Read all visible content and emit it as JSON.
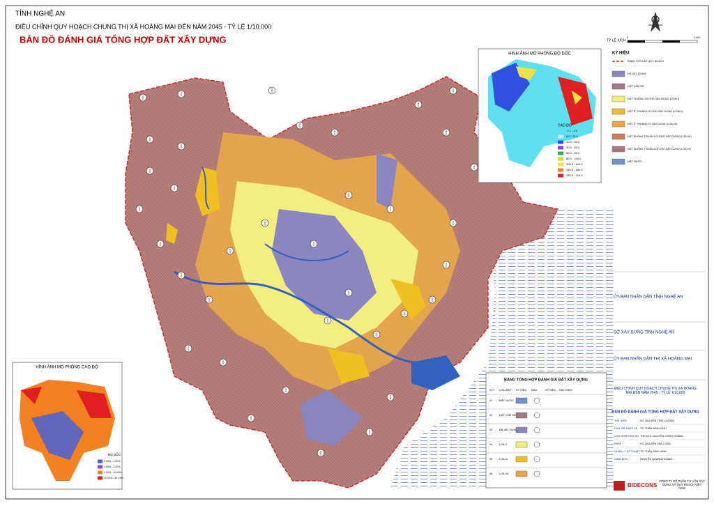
{
  "header": {
    "province": "TỈNH NGHỆ AN",
    "project": "ĐIỀU CHỈNH QUY HOẠCH CHUNG THỊ XÃ HOÀNG MAI ĐẾN NĂM 2045 - TỶ LỆ 1/10.000",
    "title": "BẢN ĐỒ ĐÁNH GIÁ TỔNG HỢP ĐẤT XÂY DỰNG",
    "scale_label": "TỶ LỆ XÍCH",
    "scale_start": "0",
    "scale_end": "1000"
  },
  "slope_inset": {
    "title": "HÌNH ẢNH MÔ PHỎNG ĐỘ DỐC",
    "legend_title": "CAO ĐỘ",
    "legend": [
      {
        "label": "-7.7 - 0.0",
        "color": "#5fe0f0"
      },
      {
        "label": "0.0 - 10.0",
        "color": "#b8f0f8"
      },
      {
        "label": "10.0 - 30.0",
        "color": "#3050e0"
      },
      {
        "label": "30.0 - 50.0",
        "color": "#9040d0"
      },
      {
        "label": "50.0 - 80.0",
        "color": "#30b040"
      },
      {
        "label": "80.0 - 100.0",
        "color": "#c8e040"
      },
      {
        "label": "100.0 - 140.0",
        "color": "#f0e040"
      },
      {
        "label": "140.0 - 180.0",
        "color": "#f08030"
      },
      {
        "label": "180.0 - 419.0",
        "color": "#e02020"
      }
    ]
  },
  "elevation_inset": {
    "title": "HÌNH ẢNH MÔ PHỎNG CAO ĐỘ",
    "legend_title": "ĐỘ DỐC",
    "legend": [
      {
        "label": "0.00% - 1.00%",
        "color": "#4060e0"
      },
      {
        "label": "1.00% - 2.00%",
        "color": "#a040c0"
      },
      {
        "label": "2.00% - 10.00%",
        "color": "#f08020"
      },
      {
        "label": "10.00% - 32.14%",
        "color": "#e02020"
      }
    ]
  },
  "legend": {
    "title": "KÝ HIỆU",
    "items": [
      {
        "label": "RANH GIỚI LẬP QUY HOẠCH",
        "color": "#c03030"
      },
      {
        "label": "ĐÃ XÂY DỰNG",
        "color": "#8a86c0"
      },
      {
        "label": "ĐẤT CẤM XD",
        "color": "#a07a80"
      },
      {
        "label": "ĐẤT THUẬN LỢI CHO XÂY DỰNG (LOẠI I)",
        "color": "#f4ee80"
      },
      {
        "label": "ĐẤT ÍT THUẬN LỢI CHO XÂY DỰNG (LOẠI II)",
        "color": "#f0c020"
      },
      {
        "label": "ĐẤT ÍT THUẬN LỢI XÂY DỰNG (LOẠI III)",
        "color": "#e8a848"
      },
      {
        "label": "ĐẤT KHÔNG THUẬN LỢI CHO XÂY DỰNG (LOẠI IV)",
        "color": "#c88060"
      },
      {
        "label": "ĐẤT KHÔNG THUẬN LỢI CHO XÂY DỰNG (LOẠI V)",
        "color": "#a87880"
      },
      {
        "label": "MẶT NƯỚC",
        "color": "#7090d0"
      }
    ]
  },
  "approval": {
    "province": "ỦY BAN NHÂN DÂN TỈNH NGHỆ AN",
    "department": "SỞ XÂY DỰNG TỈNH NGHỆ AN",
    "town": "ỦY BAN NHÂN DÂN THỊ XÃ HOÀNG MAI"
  },
  "title_block": {
    "project": "ĐIỀU CHỈNH QUY HOẠCH CHUNG THỊ XÃ HOÀNG MAI ĐẾN NĂM 2045 - TỶ LỆ 1/10.000",
    "drawing": "BẢN ĐỒ ĐÁNH GIÁ TỔNG HỢP ĐẤT XÂY DỰNG",
    "roles": [
      {
        "role": "THỂ HIỆN",
        "name": "KS. NGUYỄN TIẾN CƯỜNG"
      },
      {
        "role": "CHỦ TRÌ THIẾT KẾ",
        "name": "TS. THÂN ĐÌNH VINH"
      },
      {
        "role": "CHỦ NHIỆM ĐỒ ÁN",
        "name": "THS.KTS. NGUYỄN CÔNG HOÀNG"
      },
      {
        "role": "KIỂM",
        "name": "KS. NGUYỄN VĂN LONG"
      },
      {
        "role": "QUẢN LÝ KỸ THUẬT",
        "name": "TS. THÂN ĐÌNH VINH"
      },
      {
        "role": "GIÁM ĐỐC",
        "name": "NGUYỄN QUANG HOÀNG"
      }
    ],
    "company_logo": "BIDECONS",
    "company": "CÔNG TY CỔ PHẦN TƯ VẤN XÂY DỰNG VÀ QUY HOẠCH VIỆT NAM"
  },
  "table": {
    "title": "BẢNG TỔNG HỢP ĐÁNH GIÁ ĐẤT XÂY DỰNG",
    "headers": [
      "STT",
      "LOẠI ĐẤT",
      "KÝ HIỆU",
      "MÀU",
      "KÝ HIỆU",
      "ĐẶC ĐIỂM"
    ],
    "rows": [
      {
        "stt": "01",
        "type": "MẶT NƯỚC",
        "color": "#7090d0"
      },
      {
        "stt": "02",
        "type": "ĐẤT CẤM XD",
        "color": "#a07a80"
      },
      {
        "stt": "03",
        "type": "ĐÃ XÂY DỰNG",
        "color": "#8a86c0"
      },
      {
        "stt": "04",
        "type": "LOẠI I",
        "color": "#f4ee80"
      },
      {
        "stt": "05",
        "type": "LOẠI II",
        "color": "#f0c020"
      },
      {
        "stt": "06",
        "type": "LOẠI III",
        "color": "#e8a848"
      }
    ]
  }
}
